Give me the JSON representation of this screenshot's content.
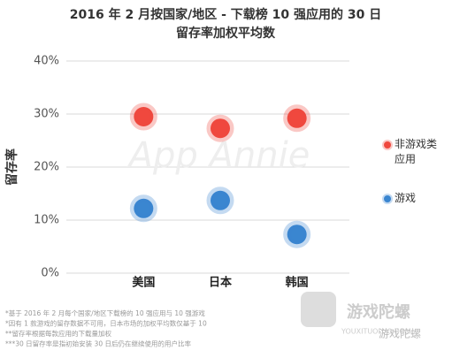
{
  "chart_data": {
    "type": "dot",
    "title": "2016 年 2 月按国家/地区 - 下载榜 10 强应用的 30 日",
    "subtitle": "留存率加权平均数",
    "y_label": "留存率",
    "categories": [
      "美国",
      "日本",
      "韩国"
    ],
    "series": [
      {
        "name": "非游戏类应用",
        "color": "#f0483e",
        "values": [
          29.5,
          27.3,
          29.2
        ]
      },
      {
        "name": "游戏",
        "color": "#3a86d0",
        "values": [
          12.2,
          13.7,
          7.3
        ]
      }
    ],
    "ylim": [
      0,
      40
    ],
    "yticks": [
      {
        "value": 0,
        "label": "0%"
      },
      {
        "value": 10,
        "label": "10%"
      },
      {
        "value": 20,
        "label": "20%"
      },
      {
        "value": 30,
        "label": "30%"
      },
      {
        "value": 40,
        "label": "40%"
      }
    ],
    "grid": true,
    "legend": "right",
    "watermark": "App Annie",
    "footnotes": [
      "*基于 2016 年 2 月每个国家/地区下载榜的 10 强应用与 10 强游戏",
      "*因有 1 款游戏的留存数据不可用，日本市场的加权平均数仅基于 10",
      "**留存率根据每款应用的下载量加权",
      "***30 日留存率是指初始安装 30 日后仍在继续使用的用户比率"
    ],
    "logo": {
      "name": "游戏陀螺",
      "url": "YOUXITUOLUO.COM",
      "caption": "游戏陀螺"
    }
  }
}
